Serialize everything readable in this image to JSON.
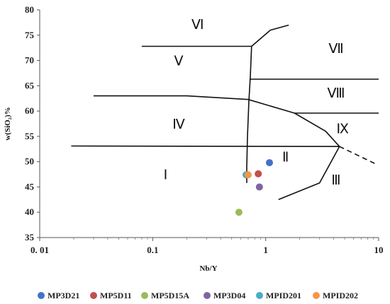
{
  "chart_data": {
    "type": "scatter",
    "title": "",
    "xlabel": "Nb/Y",
    "ylabel": "w(SiO₂)%",
    "x_scale": "log",
    "xlim": [
      0.01,
      10
    ],
    "ylim": [
      35,
      80
    ],
    "x_ticks": [
      {
        "value": 0.01,
        "label": "0. 01"
      },
      {
        "value": 0.1,
        "label": "0.1"
      },
      {
        "value": 1,
        "label": "1"
      },
      {
        "value": 10,
        "label": "10"
      }
    ],
    "y_ticks": [
      35,
      40,
      45,
      50,
      55,
      60,
      65,
      70,
      75,
      80
    ],
    "grid": false,
    "legend_position": "bottom",
    "series": [
      {
        "name": "MP3D21",
        "color": "#4472c4",
        "points": [
          [
            1.08,
            49.8
          ]
        ]
      },
      {
        "name": "MP5D11",
        "color": "#c0504d",
        "points": [
          [
            0.86,
            47.6
          ]
        ]
      },
      {
        "name": "MP5D15A",
        "color": "#9bbb59",
        "points": [
          [
            0.58,
            40.0
          ]
        ]
      },
      {
        "name": "MP3D04",
        "color": "#8064a2",
        "points": [
          [
            0.88,
            45.0
          ]
        ]
      },
      {
        "name": "MPID201",
        "color": "#4bacc6",
        "points": [
          [
            0.67,
            47.4
          ]
        ]
      },
      {
        "name": "MPID202",
        "color": "#f79646",
        "points": [
          [
            0.7,
            47.4
          ]
        ]
      }
    ],
    "boundaries": [
      {
        "solid": true,
        "points": [
          [
            0.08,
            72.8
          ],
          [
            0.75,
            72.8
          ]
        ]
      },
      {
        "solid": true,
        "points": [
          [
            0.75,
            72.8
          ],
          [
            1.1,
            76.0
          ],
          [
            1.6,
            77.0
          ]
        ]
      },
      {
        "solid": true,
        "points": [
          [
            0.75,
            72.8
          ],
          [
            0.73,
            66.5
          ],
          [
            0.71,
            62.0
          ],
          [
            0.69,
            55.0
          ],
          [
            0.68,
            49.0
          ],
          [
            0.68,
            45.8
          ]
        ]
      },
      {
        "solid": true,
        "points": [
          [
            0.72,
            66.3
          ],
          [
            10,
            66.3
          ]
        ]
      },
      {
        "solid": true,
        "points": [
          [
            0.03,
            63.0
          ],
          [
            0.2,
            63.0
          ],
          [
            0.7,
            62.3
          ],
          [
            1.8,
            59.6
          ],
          [
            3.4,
            56.0
          ],
          [
            4.5,
            53.0
          ]
        ]
      },
      {
        "solid": true,
        "points": [
          [
            1.8,
            59.6
          ],
          [
            10,
            59.6
          ]
        ]
      },
      {
        "solid": true,
        "points": [
          [
            0.019,
            53.1
          ],
          [
            4.5,
            53.0
          ]
        ]
      },
      {
        "solid": true,
        "points": [
          [
            4.5,
            53.0
          ],
          [
            3.0,
            45.8
          ],
          [
            1.3,
            42.5
          ]
        ]
      },
      {
        "solid": false,
        "points": [
          [
            4.5,
            53.0
          ],
          [
            9.5,
            49.5
          ]
        ]
      }
    ],
    "region_labels": [
      {
        "text": "Ⅰ",
        "x": 0.13,
        "y": 46.5
      },
      {
        "text": "Ⅱ",
        "x": 1.5,
        "y": 50.0
      },
      {
        "text": "Ⅲ",
        "x": 4.2,
        "y": 45.5
      },
      {
        "text": "Ⅳ",
        "x": 0.17,
        "y": 56.5
      },
      {
        "text": "Ⅴ",
        "x": 0.17,
        "y": 69.0
      },
      {
        "text": "Ⅵ",
        "x": 0.25,
        "y": 76.2
      },
      {
        "text": "Ⅶ",
        "x": 4.2,
        "y": 71.5
      },
      {
        "text": "Ⅷ",
        "x": 4.2,
        "y": 62.7
      },
      {
        "text": "Ⅸ",
        "x": 4.8,
        "y": 55.6
      }
    ]
  }
}
